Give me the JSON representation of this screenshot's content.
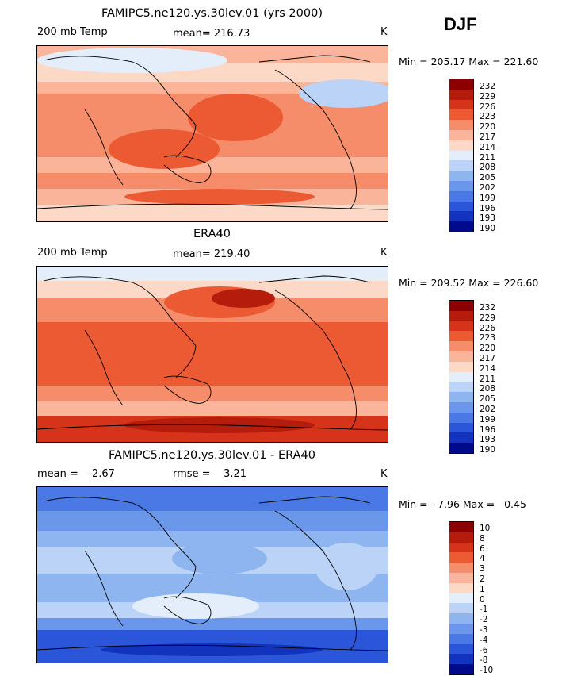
{
  "header": {
    "season": "DJF"
  },
  "panels": [
    {
      "title": "FAMIPC5.ne120.ys.30lev.01 (yrs 2000)",
      "left_label": "200 mb Temp",
      "mean_text": "mean= 216.73",
      "unit": "K",
      "minmax": "Min = 205.17 Max = 221.60",
      "field": "model",
      "colorbar_labels": [
        "232",
        "229",
        "226",
        "223",
        "220",
        "217",
        "214",
        "211",
        "208",
        "205",
        "202",
        "199",
        "196",
        "193",
        "190"
      ]
    },
    {
      "title": "ERA40",
      "left_label": "200 mb Temp",
      "mean_text": "mean= 219.40",
      "unit": "K",
      "minmax": "Min = 209.52 Max = 226.60",
      "field": "obs",
      "colorbar_labels": [
        "232",
        "229",
        "226",
        "223",
        "220",
        "217",
        "214",
        "211",
        "208",
        "205",
        "202",
        "199",
        "196",
        "193",
        "190"
      ]
    },
    {
      "title": "FAMIPC5.ne120.ys.30lev.01 - ERA40",
      "left_label": "mean =   -2.67",
      "mean_text": "rmse =    3.21",
      "unit": "K",
      "minmax": "Min =  -7.96 Max =   0.45",
      "field": "diff",
      "colorbar_labels": [
        "10",
        "8",
        "6",
        "4",
        "3",
        "2",
        "1",
        "0",
        "-1",
        "-2",
        "-3",
        "-4",
        "-6",
        "-8",
        "-10"
      ]
    }
  ],
  "colors": {
    "palette": [
      "#8b0000",
      "#b51c0c",
      "#d6341a",
      "#ec5a34",
      "#f58c6a",
      "#fab49a",
      "#fcd9c6",
      "#e4eefb",
      "#bad3f6",
      "#8fb5f0",
      "#6a97ea",
      "#4a78e4",
      "#2b56d9",
      "#1233bd",
      "#000a8a"
    ]
  }
}
